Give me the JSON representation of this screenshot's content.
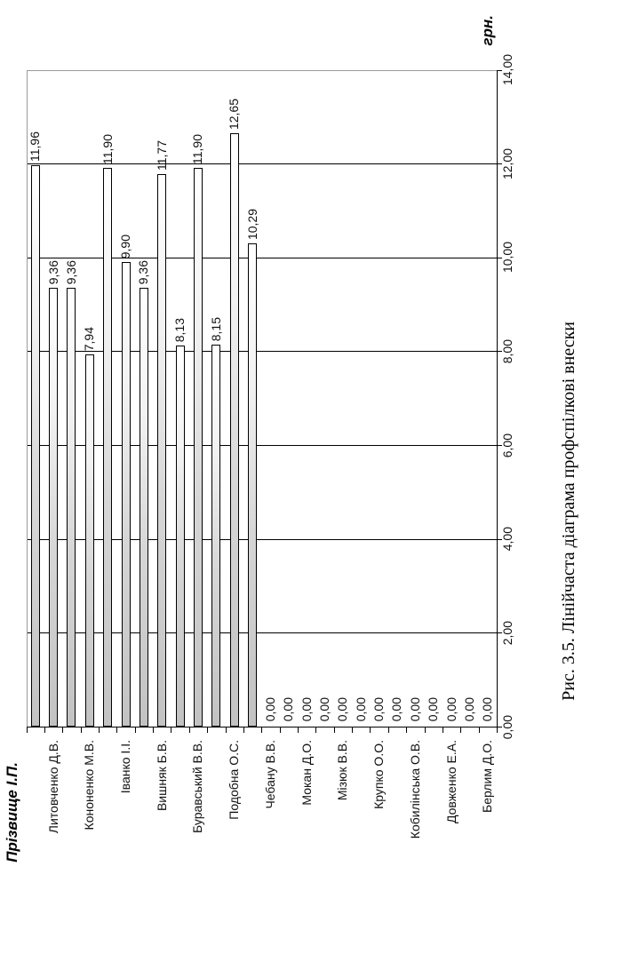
{
  "figure_caption": "Рис. 3.5. Лінійчаста діаграма профспілкові внески",
  "chart_data": {
    "type": "bar",
    "orientation": "horizontal bar chart rotated 90deg CCW on the page (bars render vertically, all text reads bottom-to-top)",
    "title": "",
    "value_axis_title": "грн.",
    "category_axis_title": "Прізвище І.П.",
    "axis_range": [
      0,
      14
    ],
    "tick_interval": 2,
    "value_tick_labels": [
      "0,00",
      "2,00",
      "4,00",
      "6,00",
      "8,00",
      "10,00",
      "12,00",
      "14,00"
    ],
    "grid": "on",
    "legend": "none",
    "categories": [
      "Литовченко Д.В.",
      "Кононенко М.В.",
      "Іванко І.І.",
      "Вишняк Б.В.",
      "Буравський В.В.",
      "Подобна О.С.",
      "Чебану В.В.",
      "Мокан Д.О.",
      "Мізюк В.В.",
      "Крупко О.О.",
      "Кобилінська О.В.",
      "Довженко Е.А.",
      "Берлим Д.О."
    ],
    "values": [
      11.96,
      9.36,
      9.36,
      7.94,
      11.9,
      9.9,
      9.36,
      11.77,
      8.13,
      11.9,
      8.15,
      12.65,
      10.29
    ],
    "value_labels": [
      "11,96",
      "9,36",
      "9,36",
      "7,94",
      "11,90",
      "9,90",
      "9,36",
      "11,77",
      "8,13",
      "11,90",
      "8,15",
      "12,65",
      "10,29"
    ],
    "zero_labels": [
      "0,00",
      "0,00",
      "0,00",
      "0,00",
      "0,00",
      "0,00",
      "0,00",
      "0,00",
      "0,00",
      "0,00",
      "0,00",
      "0,00",
      "0,00"
    ],
    "total_category_slots": 26,
    "colors": {
      "bar_fill_base": "#c2c2c2",
      "bar_fill_tip": "#ffffff",
      "bar_border": "#000000",
      "gridline": "#000000",
      "plot_border": "#9a9a9a",
      "text": "#111111",
      "background": "#ffffff"
    }
  }
}
